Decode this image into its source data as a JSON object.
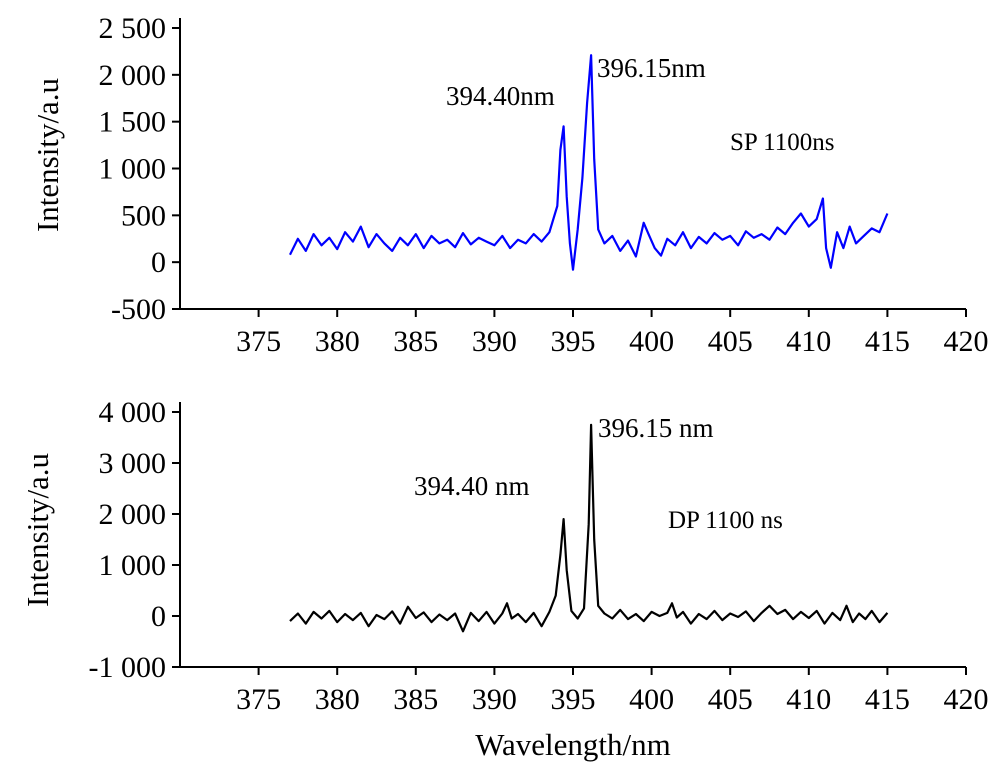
{
  "chart_data": [
    {
      "type": "line",
      "ylabel": "Intensity/a.u",
      "xlabel": "",
      "xlim": [
        370,
        420
      ],
      "ylim": [
        -500,
        2500
      ],
      "xticks": [
        375,
        380,
        385,
        390,
        395,
        400,
        405,
        410,
        415,
        420
      ],
      "xtick_labels": [
        "375",
        "380",
        "385",
        "390",
        "395",
        "400",
        "405",
        "410",
        "415",
        "420"
      ],
      "yticks": [
        -500,
        0,
        500,
        1000,
        1500,
        2000,
        2500
      ],
      "ytick_labels": [
        "-500",
        "0",
        "500",
        "1 000",
        "1 500",
        "2 000",
        "2 500"
      ],
      "series": [
        {
          "color": "#0000ff",
          "x": [
            377.0,
            377.5,
            378.0,
            378.5,
            379.0,
            379.5,
            380.0,
            380.5,
            381.0,
            381.5,
            382.0,
            382.5,
            383.0,
            383.5,
            384.0,
            384.5,
            385.0,
            385.5,
            386.0,
            386.5,
            387.0,
            387.5,
            388.0,
            388.5,
            389.0,
            389.5,
            390.0,
            390.5,
            391.0,
            391.5,
            392.0,
            392.5,
            393.0,
            393.5,
            394.0,
            394.2,
            394.4,
            394.6,
            394.8,
            395.0,
            395.3,
            395.6,
            395.9,
            396.15,
            396.35,
            396.6,
            397.0,
            397.5,
            398.0,
            398.5,
            399.0,
            399.5,
            399.8,
            400.2,
            400.6,
            401.0,
            401.5,
            402.0,
            402.5,
            403.0,
            403.5,
            404.0,
            404.5,
            405.0,
            405.5,
            406.0,
            406.5,
            407.0,
            407.5,
            408.0,
            408.5,
            409.0,
            409.5,
            410.0,
            410.5,
            410.9,
            411.1,
            411.4,
            411.8,
            412.2,
            412.6,
            413.0,
            413.5,
            414.0,
            414.5,
            415.0
          ],
          "y": [
            80,
            250,
            120,
            300,
            180,
            260,
            140,
            320,
            220,
            380,
            160,
            300,
            200,
            120,
            260,
            180,
            300,
            150,
            280,
            200,
            240,
            160,
            310,
            190,
            260,
            220,
            180,
            280,
            150,
            240,
            200,
            300,
            220,
            320,
            600,
            1200,
            1450,
            700,
            200,
            -80,
            350,
            900,
            1700,
            2210,
            1100,
            350,
            200,
            280,
            120,
            230,
            60,
            420,
            300,
            150,
            70,
            250,
            180,
            320,
            150,
            270,
            200,
            310,
            240,
            280,
            180,
            330,
            260,
            300,
            240,
            370,
            300,
            420,
            520,
            380,
            460,
            680,
            150,
            -60,
            320,
            150,
            380,
            200,
            280,
            360,
            320,
            520
          ]
        }
      ],
      "annotations": [
        "394.40nm",
        "396.15nm",
        "SP 1100ns"
      ]
    },
    {
      "type": "line",
      "ylabel": "Intensity/a.u",
      "xlabel": "Wavelength/nm",
      "xlim": [
        370,
        420
      ],
      "ylim": [
        -1000,
        4000
      ],
      "xticks": [
        375,
        380,
        385,
        390,
        395,
        400,
        405,
        410,
        415,
        420
      ],
      "xtick_labels": [
        "375",
        "380",
        "385",
        "390",
        "395",
        "400",
        "405",
        "410",
        "415",
        "420"
      ],
      "yticks": [
        -1000,
        0,
        1000,
        2000,
        3000,
        4000
      ],
      "ytick_labels": [
        "-1 000",
        "0",
        "1 000",
        "2 000",
        "3 000",
        "4 000"
      ],
      "series": [
        {
          "color": "#000000",
          "x": [
            377.0,
            377.5,
            378.0,
            378.5,
            379.0,
            379.5,
            380.0,
            380.5,
            381.0,
            381.5,
            382.0,
            382.5,
            383.0,
            383.5,
            384.0,
            384.5,
            385.0,
            385.5,
            386.0,
            386.5,
            387.0,
            387.5,
            388.0,
            388.5,
            389.0,
            389.5,
            390.0,
            390.5,
            390.8,
            391.1,
            391.5,
            392.0,
            392.5,
            393.0,
            393.5,
            393.9,
            394.2,
            394.4,
            394.6,
            394.9,
            395.3,
            395.7,
            396.0,
            396.15,
            396.35,
            396.6,
            397.0,
            397.5,
            398.0,
            398.5,
            399.0,
            399.5,
            400.0,
            400.5,
            401.0,
            401.3,
            401.6,
            402.0,
            402.5,
            403.0,
            403.5,
            404.0,
            404.5,
            405.0,
            405.5,
            406.0,
            406.5,
            407.0,
            407.5,
            408.0,
            408.5,
            409.0,
            409.5,
            410.0,
            410.5,
            411.0,
            411.5,
            412.0,
            412.4,
            412.8,
            413.2,
            413.6,
            414.0,
            414.5,
            415.0
          ],
          "y": [
            -100,
            50,
            -150,
            80,
            -50,
            100,
            -120,
            40,
            -80,
            60,
            -200,
            20,
            -60,
            90,
            -150,
            180,
            -40,
            70,
            -120,
            30,
            -80,
            50,
            -300,
            60,
            -100,
            80,
            -150,
            50,
            250,
            -50,
            40,
            -120,
            60,
            -200,
            80,
            400,
            1200,
            1900,
            900,
            100,
            -50,
            150,
            1800,
            3750,
            1500,
            200,
            50,
            -50,
            120,
            -60,
            40,
            -100,
            80,
            0,
            60,
            250,
            -30,
            80,
            -150,
            40,
            -60,
            100,
            -80,
            50,
            -20,
            90,
            -100,
            60,
            200,
            40,
            120,
            -60,
            80,
            -40,
            100,
            -150,
            60,
            -80,
            200,
            -120,
            50,
            -60,
            100,
            -120,
            60
          ]
        }
      ],
      "annotations": [
        "394.40 nm",
        "396.15 nm",
        "DP   1100 ns"
      ]
    }
  ]
}
